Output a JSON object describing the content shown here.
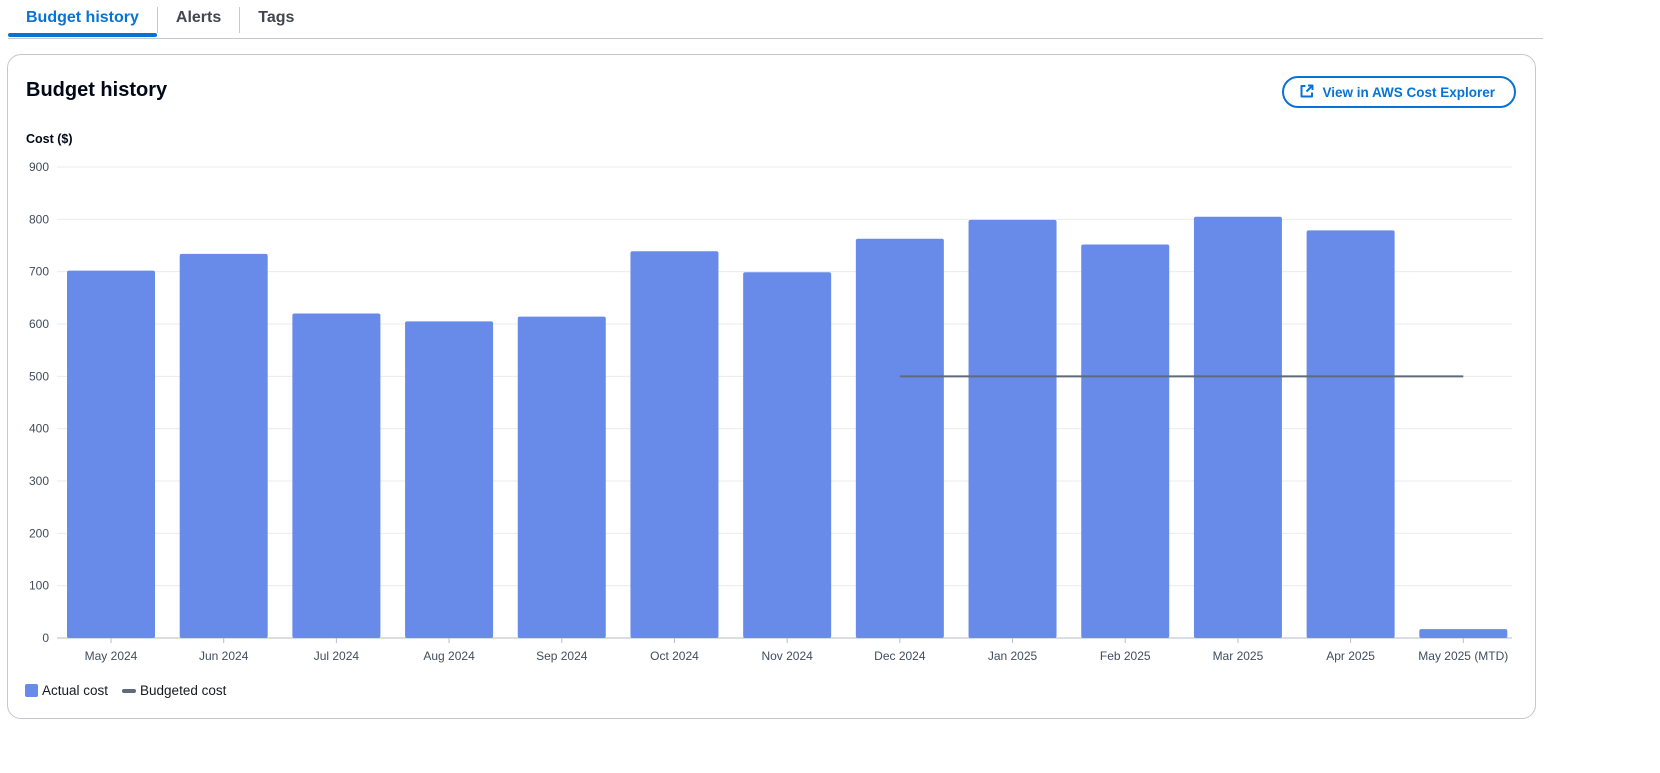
{
  "tabs": [
    {
      "label": "Budget history",
      "active": true
    },
    {
      "label": "Alerts",
      "active": false
    },
    {
      "label": "Tags",
      "active": false
    }
  ],
  "panel": {
    "title": "Budget history",
    "button_label": "View in AWS Cost Explorer",
    "button_icon": "external-link-icon"
  },
  "colors": {
    "accent": "#0972d3",
    "actual_bar": "#688ae8",
    "budget_line": "#5f6b7a"
  },
  "chart_data": {
    "type": "bar",
    "ylabel": "Cost ($)",
    "xlabel": "",
    "ylim": [
      0,
      900
    ],
    "yticks": [
      0,
      100,
      200,
      300,
      400,
      500,
      600,
      700,
      800,
      900
    ],
    "grid": true,
    "categories": [
      "May 2024",
      "Jun 2024",
      "Jul 2024",
      "Aug 2024",
      "Sep 2024",
      "Oct 2024",
      "Nov 2024",
      "Dec 2024",
      "Jan 2025",
      "Feb 2025",
      "Mar 2025",
      "Apr 2025",
      "May 2025 (MTD)"
    ],
    "series": [
      {
        "name": "Actual cost",
        "type": "bar",
        "values": [
          702,
          734,
          620,
          605,
          614,
          739,
          699,
          763,
          799,
          752,
          805,
          779,
          17
        ]
      },
      {
        "name": "Budgeted cost",
        "type": "line",
        "values": [
          null,
          null,
          null,
          null,
          null,
          null,
          null,
          500,
          500,
          500,
          500,
          500,
          500
        ]
      }
    ],
    "legend": [
      "Actual cost",
      "Budgeted cost"
    ],
    "legend_position": "bottom-left"
  }
}
